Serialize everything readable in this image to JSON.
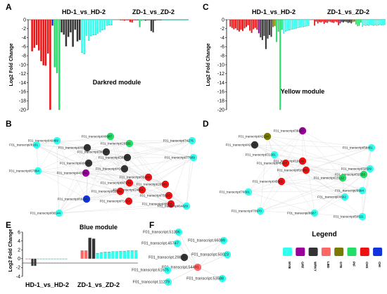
{
  "panels": [
    {
      "id": "A",
      "letter": "A",
      "module": "Darkred module",
      "ylabel": "Log2 Fold Change",
      "cond_left": "HD-1_vs_HD-2",
      "cond_right": "ZD-1_vs_ZD-2",
      "yticks": [
        "0",
        "-2",
        "-4",
        "-6",
        "-8",
        "-10",
        "-12",
        "-14",
        "-16",
        "-18",
        "-20"
      ]
    },
    {
      "id": "C",
      "letter": "C",
      "module": "Yellow module",
      "ylabel": "Log2 Fold Change",
      "cond_left": "HD-1_vs_HD-2",
      "cond_right": "ZD-1_vs_ZD-2",
      "yticks": [
        "0",
        "-2",
        "-4",
        "-6",
        "-8",
        "-10",
        "-12",
        "-14",
        "-16",
        "-18",
        "-20"
      ]
    },
    {
      "id": "E",
      "letter": "E",
      "module": "Blue module",
      "ylabel": "Log2 Fold Change",
      "cond_left": "HD-1_vs_HD-2",
      "cond_right": "ZD-1_vs_ZD-2",
      "yticks": [
        "6",
        "4",
        "2",
        "0",
        "-2",
        "-4"
      ]
    }
  ],
  "network_letters": {
    "B": "B",
    "D": "D",
    "F": "F"
  },
  "legend": {
    "title": "Legend",
    "items": [
      {
        "label": "MYB",
        "color": "#33ffee"
      },
      {
        "label": "GRF",
        "color": "#990099"
      },
      {
        "label": "WRKY",
        "color": "#333333"
      },
      {
        "label": "LBD",
        "color": "#ff6666"
      },
      {
        "label": "GTE",
        "color": "#7a7a00"
      },
      {
        "label": "PIF",
        "color": "#22dd66"
      },
      {
        "label": "CHS",
        "color": "#ee1111"
      },
      {
        "label": "CHI",
        "color": "#1133dd"
      }
    ]
  },
  "chart_data": [
    {
      "panel": "A",
      "type": "bar",
      "title": "Darkred module",
      "ylabel": "Log2 Fold Change",
      "ylim": [
        -20,
        0
      ],
      "series": [
        {
          "name": "HD-1_vs_HD-2",
          "values": [
            -7,
            -6.2,
            -5.6,
            -6.8,
            -9.2,
            -10.1,
            -10.2,
            -7.5,
            -20,
            -1.3,
            -10.5,
            -11.8,
            -20,
            -2.8,
            -3.3,
            -5.9,
            -3.8,
            -2.8,
            -6,
            -2.2,
            -4.8,
            -4.5,
            -7.3,
            -7.6,
            -3.5,
            -4.6,
            -3.6,
            -3.4,
            -3.4,
            -3,
            -2.7,
            -2.3,
            -2.1,
            -1.3,
            -1.2,
            -1.2
          ],
          "colors": [
            "#ee1111",
            "#ee1111",
            "#ee1111",
            "#ee1111",
            "#ee1111",
            "#ee1111",
            "#ee1111",
            "#ee1111",
            "#ee1111",
            "#1133dd",
            "#22dd66",
            "#22dd66",
            "#22dd66",
            "#333333",
            "#333333",
            "#333333",
            "#333333",
            "#333333",
            "#333333",
            "#333333",
            "#333333",
            "#333333",
            "#33ffee",
            "#33ffee",
            "#33ffee",
            "#33ffee",
            "#33ffee",
            "#33ffee",
            "#33ffee",
            "#33ffee",
            "#33ffee",
            "#33ffee",
            "#33ffee",
            "#33ffee",
            "#33ffee",
            "#33ffee"
          ]
        },
        {
          "name": "ZD-1_vs_ZD-2",
          "values": [
            -0.1,
            -0.1,
            -0.2,
            -0.1,
            -0.1,
            -0.5,
            -0.6,
            -0.1,
            -0.1,
            -0.1,
            -1.6,
            -0.2,
            -0.1,
            -0.2,
            -0.1,
            -0.1,
            -2.5,
            -2.8,
            -0.2,
            -0.1,
            -0.1,
            -0.1,
            -0.1,
            -0.1,
            -0.1,
            -0.1,
            -0.1,
            -0.1,
            -0.1,
            -0.1,
            -0.1,
            -0.1,
            -0.1,
            -0.1,
            -0.1,
            -0.1
          ],
          "colors": [
            "#ee1111",
            "#ee1111",
            "#ee1111",
            "#ee1111",
            "#ee1111",
            "#ee1111",
            "#ee1111",
            "#ee1111",
            "#ee1111",
            "#1133dd",
            "#22dd66",
            "#22dd66",
            "#22dd66",
            "#333333",
            "#333333",
            "#333333",
            "#333333",
            "#333333",
            "#333333",
            "#333333",
            "#333333",
            "#333333",
            "#33ffee",
            "#33ffee",
            "#33ffee",
            "#33ffee",
            "#33ffee",
            "#33ffee",
            "#33ffee",
            "#33ffee",
            "#33ffee",
            "#33ffee",
            "#33ffee",
            "#33ffee",
            "#33ffee",
            "#33ffee"
          ]
        }
      ]
    },
    {
      "panel": "C",
      "type": "bar",
      "title": "Yellow module",
      "ylabel": "Log2 Fold Change",
      "ylim": [
        -20,
        0
      ],
      "series": [
        {
          "name": "HD-1_vs_HD-2",
          "values": [
            -1.5,
            -1.8,
            -2.1,
            -1.9,
            -2.3,
            -2.6,
            -2.2,
            -2.5,
            -1.9,
            -1.6,
            -1.2,
            -2.4,
            -2.9,
            -2.1,
            -1.8,
            -2.2,
            -3,
            -3.9,
            -4.5,
            -3.6,
            -6.5,
            -4.2,
            -3.4,
            -3.8,
            -1.6,
            -1.4,
            -4.9,
            -2.6,
            -20,
            -2.2,
            -3,
            -2.6,
            -2.4,
            -2.3,
            -2.2,
            -2.1,
            -2,
            -1.9,
            -1.8,
            -1.7,
            -1.6,
            -1.6,
            -1.5,
            -1.4,
            -1.3
          ],
          "colors": [
            "#ee1111",
            "#ee1111",
            "#ee1111",
            "#ee1111",
            "#ee1111",
            "#ee1111",
            "#ee1111",
            "#ee1111",
            "#ee1111",
            "#ee1111",
            "#ee1111",
            "#ee1111",
            "#ee1111",
            "#ee1111",
            "#ee1111",
            "#ee1111",
            "#990099",
            "#333333",
            "#333333",
            "#333333",
            "#333333",
            "#333333",
            "#333333",
            "#333333",
            "#7a7a00",
            "#7a7a00",
            "#22dd66",
            "#22dd66",
            "#22dd66",
            "#22dd66",
            "#33ffee",
            "#33ffee",
            "#33ffee",
            "#33ffee",
            "#33ffee",
            "#33ffee",
            "#33ffee",
            "#33ffee",
            "#33ffee",
            "#33ffee",
            "#33ffee",
            "#33ffee",
            "#33ffee",
            "#33ffee",
            "#33ffee"
          ]
        },
        {
          "name": "ZD-1_vs_ZD-2",
          "values": [
            -1.3,
            -0.4,
            -0.8,
            -0.5,
            -0.6,
            -0.4,
            -0.9,
            -0.6,
            -0.7,
            -0.4,
            -0.5,
            -0.6,
            -0.7,
            -0.4,
            -0.5,
            -1.2,
            -0.8,
            -0.5,
            -0.6,
            -0.4,
            -0.5,
            -0.7,
            -0.6,
            -0.8,
            -0.5,
            -0.4,
            -1,
            -1.4,
            -1.3,
            -0.6,
            -1.5,
            -1.2,
            -1.3,
            -1.2,
            -1.3,
            -1.1,
            -1.2,
            -1.3,
            -1.2,
            -1.3,
            -1.2,
            -1.1,
            -1.2,
            -1.2,
            -1.1
          ],
          "colors": [
            "#ee1111",
            "#ee1111",
            "#ee1111",
            "#ee1111",
            "#ee1111",
            "#ee1111",
            "#ee1111",
            "#ee1111",
            "#ee1111",
            "#ee1111",
            "#ee1111",
            "#ee1111",
            "#ee1111",
            "#ee1111",
            "#ee1111",
            "#ee1111",
            "#990099",
            "#333333",
            "#333333",
            "#333333",
            "#333333",
            "#333333",
            "#333333",
            "#333333",
            "#7a7a00",
            "#7a7a00",
            "#22dd66",
            "#22dd66",
            "#22dd66",
            "#22dd66",
            "#33ffee",
            "#33ffee",
            "#33ffee",
            "#33ffee",
            "#33ffee",
            "#33ffee",
            "#33ffee",
            "#33ffee",
            "#33ffee",
            "#33ffee",
            "#33ffee",
            "#33ffee",
            "#33ffee",
            "#33ffee",
            "#33ffee"
          ]
        }
      ]
    },
    {
      "panel": "E",
      "type": "bar",
      "title": "Blue module",
      "ylabel": "Log2 Fold Change",
      "ylim": [
        -4,
        6
      ],
      "series": [
        {
          "name": "HD-1_vs_HD-2",
          "values": [
            -0.05,
            -0.05,
            -1.6,
            -1.6,
            -0.05,
            -0.05,
            -0.05,
            -0.05,
            -0.05,
            -0.05,
            -0.05,
            -0.05,
            -0.05,
            -0.05,
            -0.05
          ],
          "colors": [
            "#ff6666",
            "#ff6666",
            "#333333",
            "#333333",
            "#33ffee",
            "#33ffee",
            "#33ffee",
            "#33ffee",
            "#33ffee",
            "#33ffee",
            "#33ffee",
            "#33ffee",
            "#33ffee",
            "#33ffee",
            "#33ffee"
          ]
        },
        {
          "name": "ZD-1_vs_ZD-2",
          "values": [
            1.8,
            1.8,
            4.7,
            4.5,
            1.2,
            1.4,
            1.5,
            1.5,
            1.6,
            1.6,
            1.7,
            1.7,
            1.8,
            1.8,
            1.8
          ],
          "colors": [
            "#ff6666",
            "#ff6666",
            "#333333",
            "#333333",
            "#33ffee",
            "#33ffee",
            "#33ffee",
            "#33ffee",
            "#33ffee",
            "#33ffee",
            "#33ffee",
            "#33ffee",
            "#33ffee",
            "#33ffee",
            "#33ffee"
          ]
        }
      ]
    }
  ],
  "networks": [
    {
      "panel": "B",
      "nodes": [
        {
          "id": "n1",
          "label": "F01_transcript/40687",
          "color": "#22dd66"
        },
        {
          "id": "n2",
          "label": "F01_transcript/40489",
          "color": "#33ffee"
        },
        {
          "id": "n3",
          "label": "F01_transcript/29531",
          "color": "#22dd66"
        },
        {
          "id": "n4",
          "label": "F01_transcript/74276",
          "color": "#33ffee"
        },
        {
          "id": "n5",
          "label": "F01_transcript/8161",
          "color": "#33ffee"
        },
        {
          "id": "n6",
          "label": "F01_transcript/40646",
          "color": "#333333"
        },
        {
          "id": "n7",
          "label": "F01_transcript/39269",
          "color": "#333333"
        },
        {
          "id": "n8",
          "label": "F01_transcript/38969",
          "color": "#333333"
        },
        {
          "id": "n9",
          "label": "F01_transcript/77689",
          "color": "#33ffee"
        },
        {
          "id": "n10",
          "label": "F01_transcript/40660",
          "color": "#333333"
        },
        {
          "id": "n11",
          "label": "F01_transcript/41041",
          "color": "#333333"
        },
        {
          "id": "n12",
          "label": "F01_transcript/67864",
          "color": "#33ffee"
        },
        {
          "id": "n13",
          "label": "F01_transcript/43796",
          "color": "#990099"
        },
        {
          "id": "n14",
          "label": "F01_transcript/33409",
          "color": "#ee1111"
        },
        {
          "id": "n15",
          "label": "F01_transcript/47239",
          "color": "#ee1111"
        },
        {
          "id": "n16",
          "label": "F01_transcript/26580",
          "color": "#ee1111"
        },
        {
          "id": "n17",
          "label": "F01_transcript/24051",
          "color": "#ee1111"
        },
        {
          "id": "n18",
          "label": "F01_transcript/50866",
          "color": "#ee1111"
        },
        {
          "id": "n19",
          "label": "F01_transcript/75833",
          "color": "#ee1111"
        },
        {
          "id": "n20",
          "label": "F01_transcript/69200",
          "color": "#1133dd"
        },
        {
          "id": "n21",
          "label": "F01_transcript/71802",
          "color": "#ee1111"
        },
        {
          "id": "n22",
          "label": "F01_transcript/48436",
          "color": "#ee1111"
        },
        {
          "id": "n23",
          "label": "F01_transcript/64829",
          "color": "#33ffee"
        },
        {
          "id": "n24",
          "label": "F01_transcript/68144",
          "color": "#33ffee"
        }
      ]
    },
    {
      "panel": "D",
      "nodes": [
        {
          "id": "d1",
          "label": "F01_transcript/38405",
          "color": "#990099"
        },
        {
          "id": "d2",
          "label": "F01_transcript/42194",
          "color": "#7a7a00"
        },
        {
          "id": "d3",
          "label": "F01_transcript/42525",
          "color": "#333333"
        },
        {
          "id": "d4",
          "label": "F01_transcript/58451",
          "color": "#33ffee"
        },
        {
          "id": "d5",
          "label": "F01_transcript/31281",
          "color": "#33ffee"
        },
        {
          "id": "d6",
          "label": "F01_transcript/19166",
          "color": "#ee1111"
        },
        {
          "id": "d7",
          "label": "F01_transcript/45437",
          "color": "#ee1111"
        },
        {
          "id": "d8",
          "label": "F01_transcript/50960",
          "color": "#ee1111"
        },
        {
          "id": "d9",
          "label": "F01_transcript/32509",
          "color": "#33ffee"
        },
        {
          "id": "d10",
          "label": "F01_transcript/32333",
          "color": "#22dd66"
        },
        {
          "id": "d11",
          "label": "F01_transcript/23122",
          "color": "#22dd66"
        },
        {
          "id": "d12",
          "label": "F01_transcript/45961",
          "color": "#ee1111"
        },
        {
          "id": "d13",
          "label": "F01_transcript/76601",
          "color": "#33ffee"
        },
        {
          "id": "d14",
          "label": "F01_transcript/8994",
          "color": "#33ffee"
        },
        {
          "id": "d15",
          "label": "F01_transcript/4692",
          "color": "#33ffee"
        },
        {
          "id": "d16",
          "label": "F01_transcript/70970",
          "color": "#33ffee"
        },
        {
          "id": "d17",
          "label": "F01_transcript/8687",
          "color": "#33ffee"
        },
        {
          "id": "d18",
          "label": "F01_transcript/50531",
          "color": "#33ffee"
        }
      ]
    },
    {
      "panel": "F",
      "nodes": [
        {
          "id": "f1",
          "label": "F01_transcript.51306",
          "color": "#33ffee"
        },
        {
          "id": "f2",
          "label": "F01_transcript.66099",
          "color": "#33ffee"
        },
        {
          "id": "f3",
          "label": "F01_transcript.45747",
          "color": "#33ffee"
        },
        {
          "id": "f4",
          "label": "F01_transcript.50023",
          "color": "#33ffee"
        },
        {
          "id": "f5",
          "label": "F01_transcript.29830",
          "color": "#333333"
        },
        {
          "id": "f6",
          "label": "F01_transcript.54491",
          "color": "#ff6666"
        },
        {
          "id": "f7",
          "label": "F01_transcript.61675",
          "color": "#33ffee"
        },
        {
          "id": "f8",
          "label": "F01_transcript.53588",
          "color": "#33ffee"
        },
        {
          "id": "f9",
          "label": "F01_transcript.11279",
          "color": "#33ffee"
        }
      ]
    }
  ]
}
